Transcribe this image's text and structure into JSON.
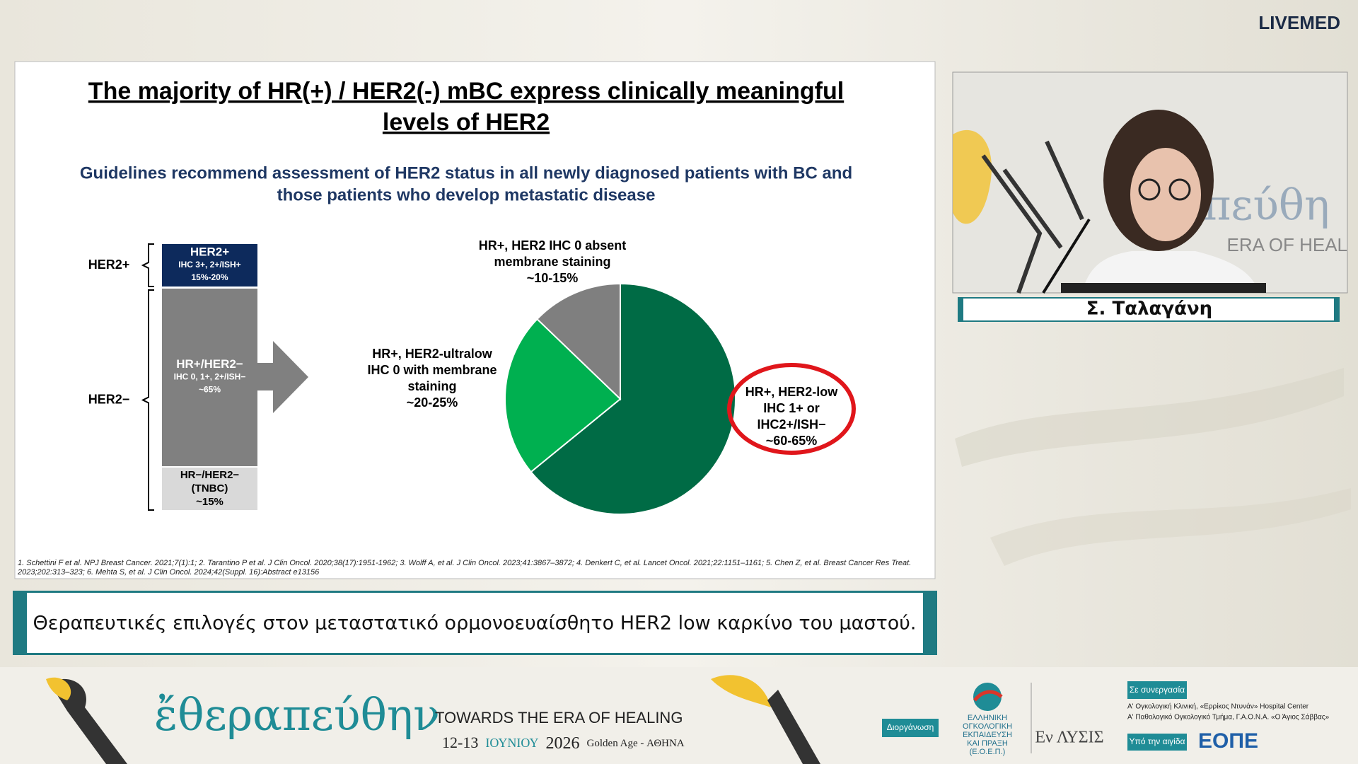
{
  "header": {
    "logo": "LIVEMED"
  },
  "slide": {
    "title": [
      "The majority of HR(+) / HER2(-) mBC express clinically meaningful",
      "levels of HER2"
    ],
    "subtitle": [
      "Guidelines recommend assessment of HER2 status in all newly diagnosed patients with BC and",
      "those patients who develop metastatic disease"
    ],
    "groups": [
      "HER2+",
      "HER2−"
    ],
    "boxes": [
      [
        "HER2+",
        "IHC 3+, 2+/ISH+",
        "15%-20%"
      ],
      [
        "HR+/HER2−",
        "IHC 0, 1+, 2+/ISH−",
        "~65%"
      ],
      [
        "HR−/HER2−",
        "(TNBC)",
        "~15%"
      ]
    ],
    "pie": {
      "type": "pie",
      "values": [
        62.5,
        22.5,
        12.5
      ],
      "colors": [
        "#006b45",
        "#00b050",
        "#7f7f7f"
      ],
      "labels": [
        [
          "HR+, HER2-low",
          "IHC 1+ or",
          "IHC2+/ISH−",
          "~60-65%"
        ],
        [
          "HR+, HER2-ultralow",
          "IHC 0 with membrane",
          "staining",
          "~20-25%"
        ],
        [
          "HR+, HER2 IHC 0 absent",
          "membrane staining",
          "~10-15%"
        ]
      ],
      "highlight_color": "#e0161b"
    },
    "footnote": [
      "1. Schettini F et al. NPJ Breast Cancer. 2021;7(1):1; 2. Tarantino P et al. J Clin Oncol. 2020;38(17):1951-1962; 3. Wolff A, et al. J Clin Oncol. 2023;41:3867–3872; 4. Denkert C, et al. Lancet Oncol. 2021;22:1151–1161; 5. Chen Z, et al. Breast Cancer Res Treat.",
      "2023;202:313–323; 6. Mehta S, et al. J Clin Oncol. 2024;42(Suppl. 16):Abstract e13156"
    ]
  },
  "caption": "Θεραπευτικές επιλογές στον μεταστατικό ορμονοευαίσθητο HER2 low καρκίνο του μαστού.",
  "speaker": {
    "name": "Σ. Ταλαγάνη",
    "backdrop": [
      "πεύθη",
      "ERA OF HEAL"
    ]
  },
  "banner": {
    "brand": "ἔθεραπεύθην",
    "tagline": "TOWARDS THE ERA OF HEALING",
    "dates": "12-13",
    "month": "ΙΟΥΝΙΟΥ",
    "year": "2026",
    "venue": "Golden Age - ΑΘΗΝΑ",
    "organizer_badge": "Διοργάνωση",
    "organizer": [
      "ΕΛΛΗΝΙΚΗ",
      "ΟΓΚΟΛΟΓΙΚΗ",
      "ΕΚΠΑΙΔΕΥΣΗ",
      "ΚΑΙ ΠΡΑΞΗ",
      "(Ε.Ο.Ε.Π.)"
    ],
    "partner_logo": "Εν ΛΥΣΙΣ",
    "collab_badge": "Σε συνεργασία",
    "collab": [
      "Α' Ογκολογική Κλινική, «Ερρίκος Ντυνάν» Hospital Center",
      "Α' Παθολογικό Ογκολογικό Τμήμα, Γ.Α.Ο.Ν.Α. «Ο Άγιος Σάββας»"
    ],
    "auspices_badge": "Υπό την αιγίδα",
    "auspices": "ΕΟΠΕ"
  }
}
